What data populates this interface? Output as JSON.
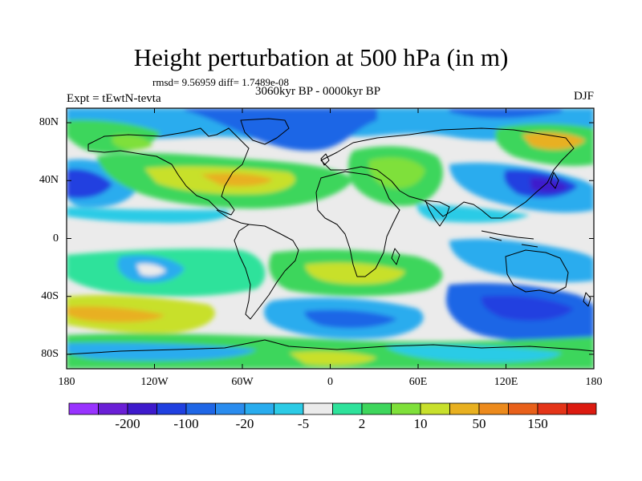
{
  "figure": {
    "title": "Height perturbation at 500 hPa (in m)",
    "stats": "rmsd= 9.56959 diff= 1.7489e-08",
    "period": "3060kyr BP - 0000kyr BP",
    "experiment": "Expt = tEwtN-tevta",
    "season": "DJF"
  },
  "map": {
    "variable": "500 hPa height perturbation",
    "units": "m",
    "lat_ticks": [
      "80N",
      "40N",
      "0",
      "40S",
      "80S"
    ],
    "lat_values": [
      80,
      40,
      0,
      -40,
      -80
    ],
    "lon_ticks": [
      "180",
      "120W",
      "60W",
      "0",
      "60E",
      "120E",
      "180"
    ],
    "lon_values": [
      -180,
      -120,
      -60,
      0,
      60,
      120,
      180
    ],
    "lat_range": [
      -90,
      90
    ],
    "lon_range": [
      -180,
      180
    ]
  },
  "colorbar": {
    "labels": [
      "-200",
      "-100",
      "-20",
      "-5",
      "2",
      "10",
      "50",
      "150"
    ],
    "label_box_index": [
      1,
      3,
      5,
      7,
      9,
      11,
      13,
      15
    ],
    "colors": [
      "#9933ff",
      "#6a1fd6",
      "#3e1acc",
      "#2040e0",
      "#1f66e6",
      "#2a8cee",
      "#29acee",
      "#2ccbe6",
      "#ebebeb",
      "#2ee29b",
      "#3ed65c",
      "#7fe03a",
      "#c8e02c",
      "#e8b020",
      "#ec8a1c",
      "#e8601a",
      "#e43418",
      "#dc1a10"
    ]
  }
}
